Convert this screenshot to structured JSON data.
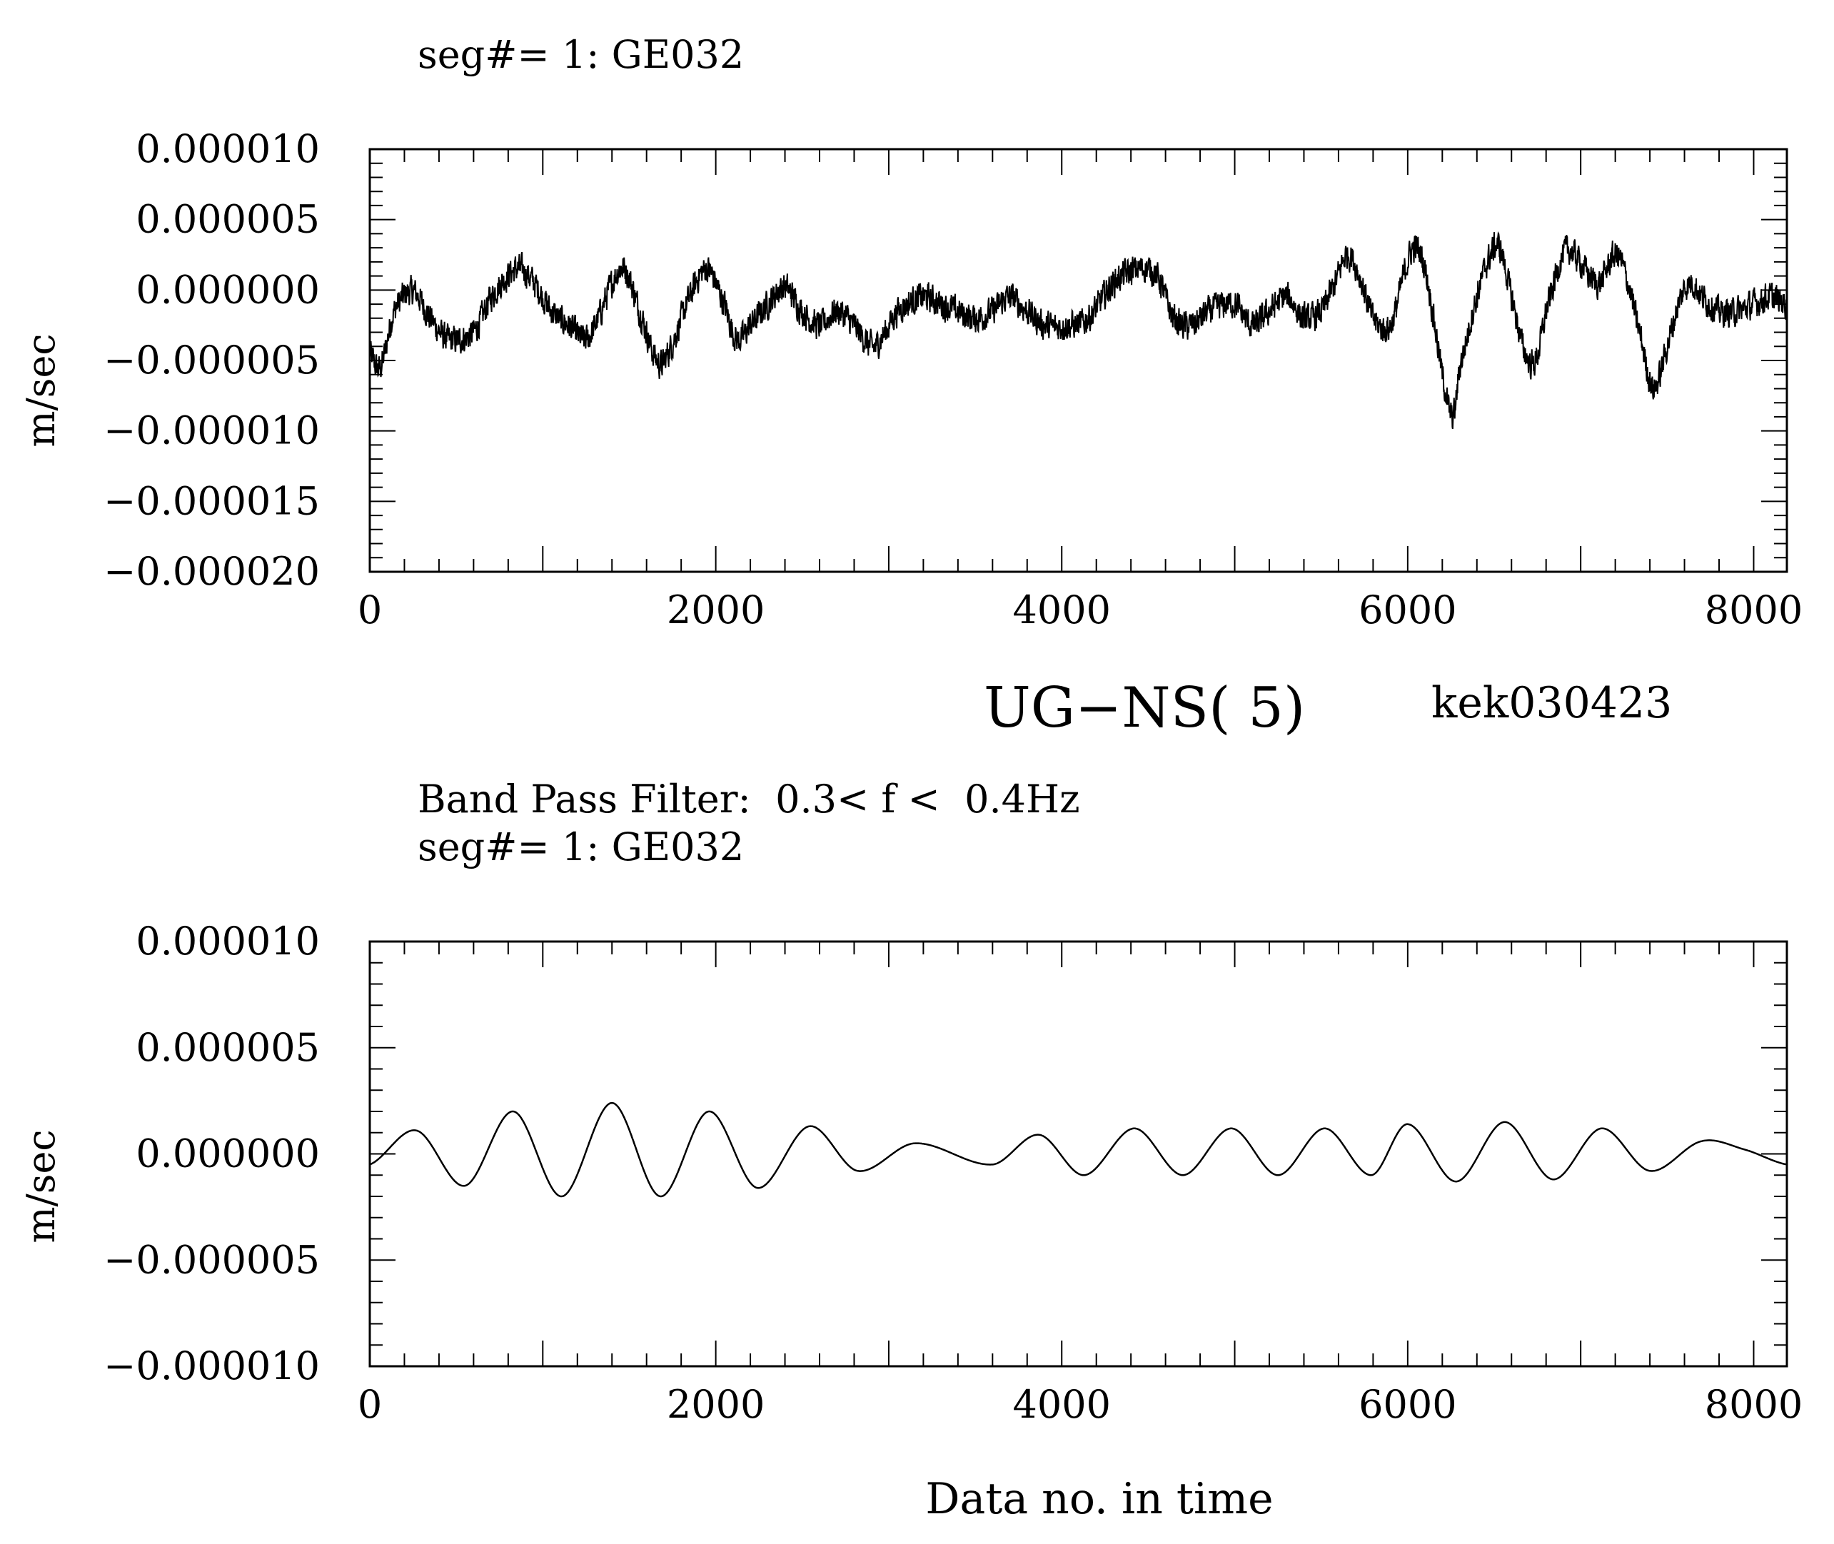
{
  "header": {
    "title": "UG−NS( 5)",
    "run_id": "kek030423"
  },
  "chart_data": [
    {
      "type": "line",
      "subtitle": "",
      "segment": "seg#= 1: GE032",
      "ylabel": "m/sec",
      "xlabel": "",
      "xlim": [
        0,
        8192
      ],
      "ylim": [
        -2e-05,
        1e-05
      ],
      "x_ticks": [
        {
          "value": 0,
          "label": "0"
        },
        {
          "value": 2000,
          "label": "2000"
        },
        {
          "value": 4000,
          "label": "4000"
        },
        {
          "value": 6000,
          "label": "6000"
        },
        {
          "value": 8000,
          "label": "8000"
        }
      ],
      "y_ticks": [
        {
          "value": 1e-05,
          "label": "0.000010"
        },
        {
          "value": 5e-06,
          "label": "0.000005"
        },
        {
          "value": 0,
          "label": "0.000000"
        },
        {
          "value": -5e-06,
          "label": "−0.000005"
        },
        {
          "value": -1e-05,
          "label": "−0.000010"
        },
        {
          "value": -1.5e-05,
          "label": "−0.000015"
        },
        {
          "value": -2e-05,
          "label": "−0.000020"
        }
      ],
      "grid": false,
      "series": [
        {
          "color": "#000000",
          "note_noise_amplitude": 1.4e-06,
          "x": [
            0,
            60,
            140,
            250,
            350,
            450,
            600,
            700,
            850,
            950,
            1050,
            1150,
            1250,
            1320,
            1400,
            1470,
            1560,
            1660,
            1720,
            1850,
            1950,
            2050,
            2120,
            2200,
            2300,
            2400,
            2500,
            2600,
            2700,
            2800,
            2900,
            2950,
            3050,
            3200,
            3300,
            3400,
            3500,
            3600,
            3700,
            3800,
            3900,
            4050,
            4150,
            4300,
            4450,
            4550,
            4650,
            4750,
            4850,
            5000,
            5100,
            5200,
            5300,
            5400,
            5500,
            5580,
            5650,
            5720,
            5800,
            5900,
            6000,
            6050,
            6100,
            6150,
            6200,
            6260,
            6300,
            6400,
            6480,
            6530,
            6600,
            6680,
            6740,
            6800,
            6900,
            6960,
            7100,
            7200,
            7260,
            7350,
            7420,
            7500,
            7580,
            7640,
            7700,
            7800,
            7900,
            8000,
            8100,
            8192
          ],
          "y": [
            -4.5e-06,
            -5.5e-06,
            -1.5e-06,
            -1e-07,
            -2e-06,
            -3.5e-06,
            -3e-06,
            -5e-07,
            1.5e-06,
            5e-07,
            -1.5e-06,
            -2.5e-06,
            -3.5e-06,
            -2e-06,
            5e-07,
            1.5e-06,
            -1.5e-06,
            -5e-06,
            -4.5e-06,
            -5e-07,
            1.5e-06,
            -1e-06,
            -3.5e-06,
            -2.5e-06,
            -1e-06,
            2e-07,
            -1.5e-06,
            -2.5e-06,
            -1.5e-06,
            -2.5e-06,
            -4e-06,
            -3.5e-06,
            -1.5e-06,
            -5e-07,
            -1e-06,
            -1.5e-06,
            -2e-06,
            -1.5e-06,
            -5e-07,
            -1.5e-06,
            -2.5e-06,
            -2.5e-06,
            -2e-06,
            5e-07,
            1.5e-06,
            1e-06,
            -2e-06,
            -2.5e-06,
            -1.5e-06,
            -1e-06,
            -2.5e-06,
            -1.5e-06,
            -5e-07,
            -2e-06,
            -1.5e-06,
            5e-07,
            2.5e-06,
            1e-06,
            -2e-06,
            -2.5e-06,
            2e-06,
            3e-06,
            1.5e-06,
            -2e-06,
            -6e-06,
            -9e-06,
            -5.5e-06,
            -5e-07,
            2.5e-06,
            3e-06,
            -5e-07,
            -4.5e-06,
            -5e-06,
            -1.5e-06,
            2.5e-06,
            2.5e-06,
            5e-07,
            2.5e-06,
            1e-06,
            -3.5e-06,
            -7e-06,
            -4e-06,
            -5e-07,
            5e-07,
            -5e-07,
            -1.5e-06,
            -1.5e-06,
            -1e-06,
            -5e-07,
            -1e-06
          ]
        }
      ]
    },
    {
      "type": "line",
      "subtitle": "Band Pass Filter:  0.3< f <  0.4Hz",
      "segment": "seg#= 1: GE032",
      "ylabel": "m/sec",
      "xlabel": "Data no. in time",
      "xlim": [
        0,
        8192
      ],
      "ylim": [
        -1e-05,
        1e-05
      ],
      "x_ticks": [
        {
          "value": 0,
          "label": "0"
        },
        {
          "value": 2000,
          "label": "2000"
        },
        {
          "value": 4000,
          "label": "4000"
        },
        {
          "value": 6000,
          "label": "6000"
        },
        {
          "value": 8000,
          "label": "8000"
        }
      ],
      "y_ticks": [
        {
          "value": 1e-05,
          "label": "0.000010"
        },
        {
          "value": 5e-06,
          "label": "0.000005"
        },
        {
          "value": 0,
          "label": "0.000000"
        },
        {
          "value": -5e-06,
          "label": "−0.000005"
        },
        {
          "value": -1e-05,
          "label": "−0.000010"
        }
      ],
      "grid": false,
      "series": [
        {
          "color": "#000000",
          "x": [
            0,
            270,
            550,
            830,
            1110,
            1400,
            1680,
            1960,
            2240,
            2540,
            2820,
            3150,
            3600,
            3870,
            4130,
            4420,
            4700,
            4980,
            5250,
            5520,
            5790,
            6000,
            6280,
            6560,
            6840,
            7120,
            7400,
            7700,
            7950,
            8192
          ],
          "y": [
            -5e-07,
            1.1e-06,
            -1.5e-06,
            2e-06,
            -2e-06,
            2.4e-06,
            -2e-06,
            2e-06,
            -1.6e-06,
            1.3e-06,
            -8e-07,
            5e-07,
            -5e-07,
            9e-07,
            -1e-06,
            1.2e-06,
            -1e-06,
            1.2e-06,
            -1e-06,
            1.2e-06,
            -1e-06,
            1.4e-06,
            -1.3e-06,
            1.5e-06,
            -1.2e-06,
            1.2e-06,
            -8e-07,
            6e-07,
            2e-07,
            -5e-07
          ]
        }
      ]
    }
  ]
}
